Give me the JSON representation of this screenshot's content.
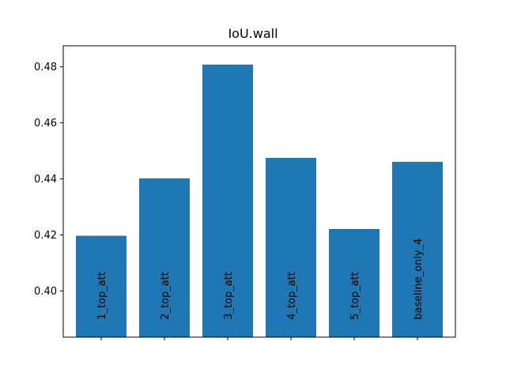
{
  "chart_data": {
    "type": "bar",
    "title": "IoU.wall",
    "xlabel": "",
    "ylabel": "",
    "categories": [
      "1_top_att",
      "2_top_att",
      "3_top_att",
      "4_top_att",
      "5_top_att",
      "baseline_only_4"
    ],
    "values": [
      0.4197,
      0.4402,
      0.4808,
      0.4475,
      0.4221,
      0.4461
    ],
    "ylim": [
      0.3835,
      0.4875
    ],
    "yticks": [
      0.4,
      0.42,
      0.44,
      0.46,
      0.48
    ],
    "ytick_labels": [
      "0.40",
      "0.42",
      "0.44",
      "0.46",
      "0.48"
    ],
    "bar_color": "#1f77b4",
    "grid": false,
    "bar_labels_inside_rotated": true
  }
}
